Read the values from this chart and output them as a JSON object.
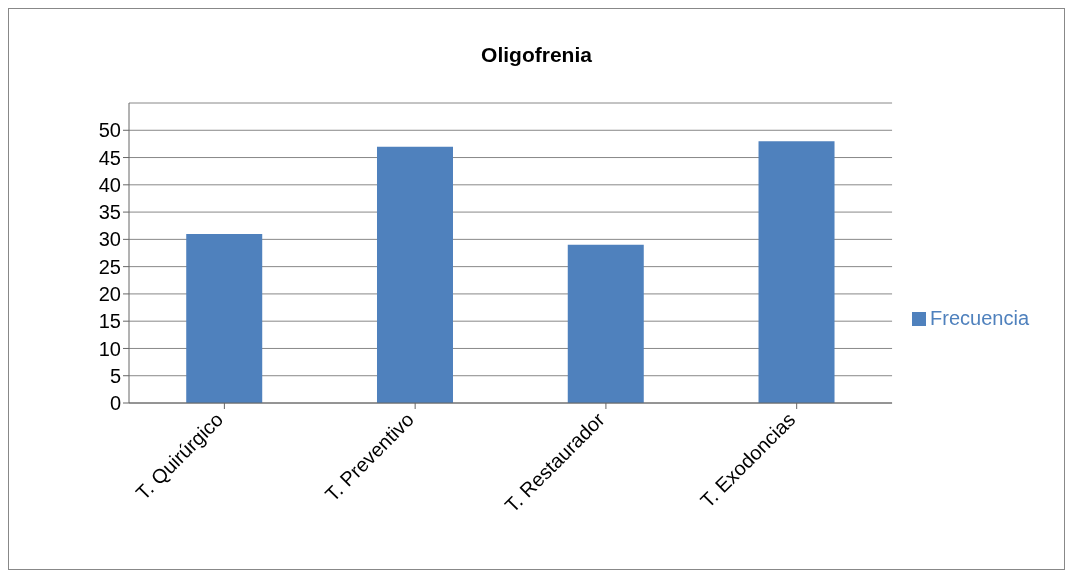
{
  "chart_data": {
    "type": "bar",
    "title": "Oligofrenia",
    "categories": [
      "T. Quirúrgico",
      "T. Preventivo",
      "T. Restaurador",
      "T. Exodoncias"
    ],
    "series": [
      {
        "name": "Frecuencia",
        "color": "#4f81bd",
        "values": [
          31,
          47,
          29,
          48
        ]
      }
    ],
    "ylim": [
      0,
      55
    ],
    "yticks": [
      0,
      5,
      10,
      15,
      20,
      25,
      30,
      35,
      40,
      45,
      50
    ],
    "grid": "y",
    "legend": "right"
  }
}
